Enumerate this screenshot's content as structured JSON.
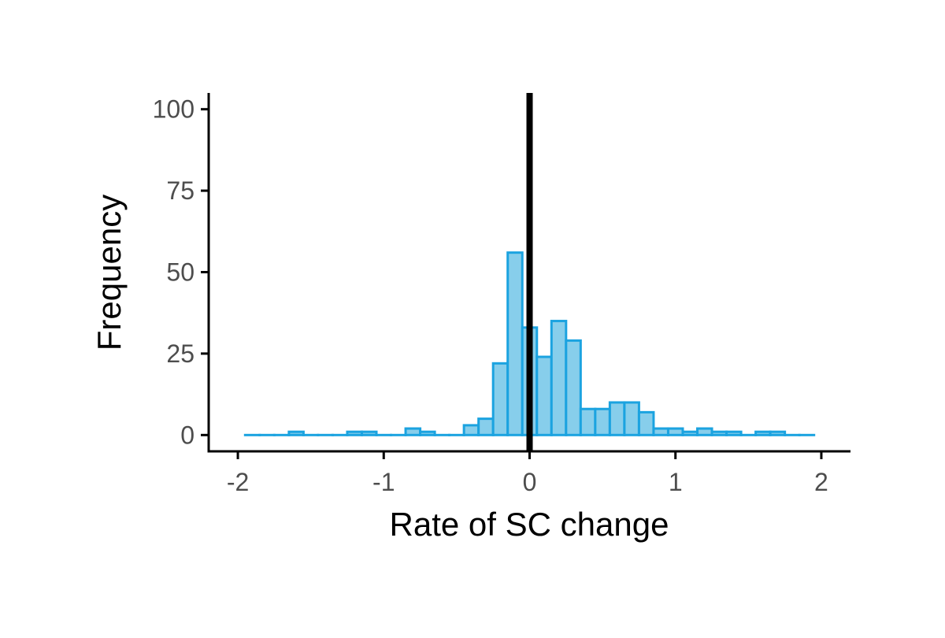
{
  "chart_data": {
    "type": "bar",
    "subtype": "histogram",
    "xlabel": "Rate of SC change",
    "ylabel": "Frequency",
    "xlim": [
      -2.2,
      2.2
    ],
    "ylim": [
      -5,
      105
    ],
    "xticks": [
      -2,
      -1,
      0,
      1,
      2
    ],
    "yticks": [
      0,
      25,
      50,
      75,
      100
    ],
    "bin_width": 0.1,
    "x": [
      -1.9,
      -1.8,
      -1.7,
      -1.6,
      -1.5,
      -1.4,
      -1.3,
      -1.2,
      -1.1,
      -1.0,
      -0.9,
      -0.8,
      -0.7,
      -0.6,
      -0.5,
      -0.4,
      -0.3,
      -0.2,
      -0.1,
      0.0,
      0.1,
      0.2,
      0.3,
      0.4,
      0.5,
      0.6,
      0.7,
      0.8,
      0.9,
      1.0,
      1.1,
      1.2,
      1.3,
      1.4,
      1.5,
      1.6,
      1.7,
      1.8,
      1.9
    ],
    "values": [
      0,
      0,
      0,
      1,
      0,
      0,
      0,
      1,
      1,
      0,
      0,
      2,
      1,
      0,
      0,
      3,
      5,
      22,
      56,
      33,
      24,
      35,
      29,
      8,
      8,
      10,
      10,
      7,
      2,
      2,
      1,
      2,
      1,
      1,
      0,
      1,
      1,
      0,
      0
    ],
    "vline": 0,
    "colors": {
      "fill": "#87ceeb",
      "stroke": "#1ba3e0",
      "vline": "#000000",
      "axis": "#000000"
    },
    "grid": false,
    "legend": "none"
  }
}
